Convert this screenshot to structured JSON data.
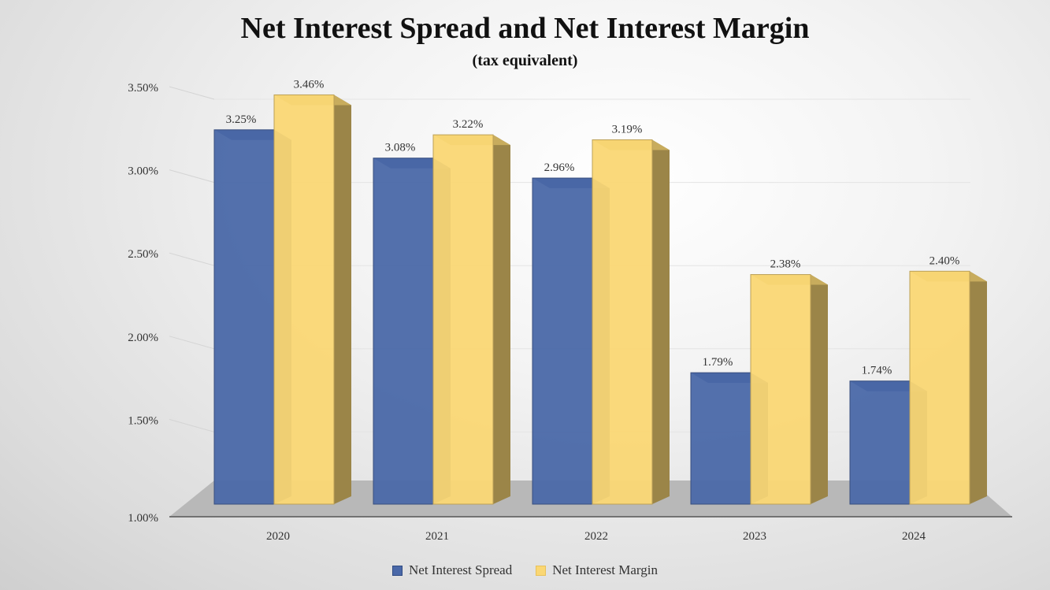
{
  "chart_data": {
    "type": "bar",
    "title": "Net Interest Spread and Net Interest Margin",
    "subtitle": "(tax equivalent)",
    "categories": [
      "2020",
      "2021",
      "2022",
      "2023",
      "2024"
    ],
    "series": [
      {
        "name": "Net Interest Spread",
        "values": [
          3.25,
          3.08,
          2.96,
          1.79,
          1.74
        ],
        "labels": [
          "3.25%",
          "3.08%",
          "2.96%",
          "1.79%",
          "1.74%"
        ],
        "color": "#4a68a8"
      },
      {
        "name": "Net Interest Margin",
        "values": [
          3.46,
          3.22,
          3.19,
          2.38,
          2.4
        ],
        "labels": [
          "3.46%",
          "3.22%",
          "3.19%",
          "2.38%",
          "2.40%"
        ],
        "color": "#fad774"
      }
    ],
    "y_ticks": [
      "1.00%",
      "1.50%",
      "2.00%",
      "2.50%",
      "3.00%",
      "3.50%"
    ],
    "y_tick_values": [
      1.0,
      1.5,
      2.0,
      2.5,
      3.0,
      3.5
    ],
    "ylim": [
      1.0,
      3.5
    ],
    "legend_position": "bottom",
    "grid": true
  }
}
